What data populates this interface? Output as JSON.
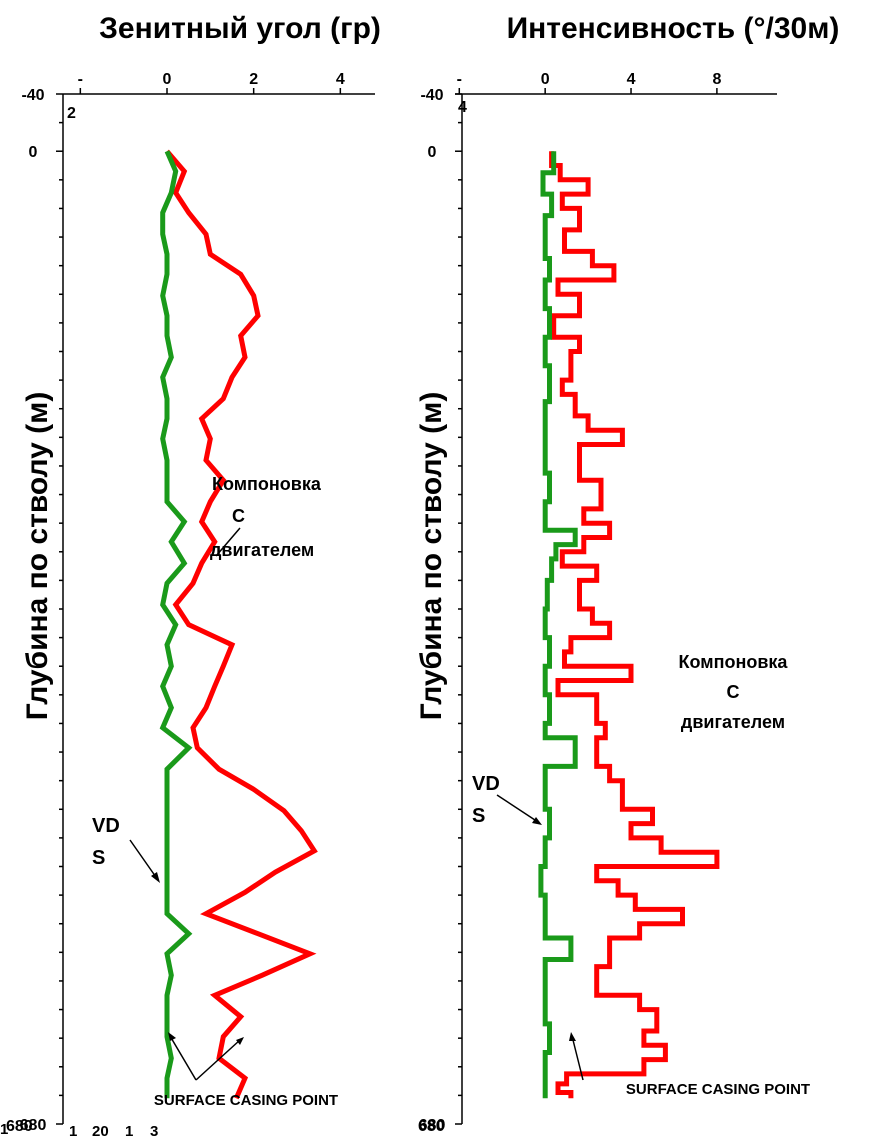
{
  "chart_data": [
    {
      "type": "line",
      "title": "Зенитный угол (гр)",
      "ylabel": "Глубина по стволу (м)",
      "x_tick_labels": [
        "-",
        "0",
        "2",
        "4"
      ],
      "x_tick_values": [
        -2,
        0,
        2,
        4
      ],
      "x_extra_label": "2",
      "y_tick_labels": [
        "-40",
        "0",
        "680"
      ],
      "y_tick_values": [
        -40,
        0,
        680
      ],
      "xlim": [
        -2.4,
        4.8
      ],
      "ylim": [
        -40,
        680
      ],
      "series": [
        {
          "color": "#ff0000",
          "points": [
            [
              0,
              0
            ],
            [
              0.4,
              14
            ],
            [
              0.2,
              29
            ],
            [
              0.5,
              43
            ],
            [
              0.9,
              58
            ],
            [
              1.0,
              72
            ],
            [
              1.7,
              86
            ],
            [
              2.0,
              101
            ],
            [
              2.1,
              115
            ],
            [
              1.7,
              129
            ],
            [
              1.8,
              144
            ],
            [
              1.5,
              158
            ],
            [
              1.3,
              173
            ],
            [
              0.8,
              187
            ],
            [
              1.0,
              201
            ],
            [
              0.9,
              216
            ],
            [
              1.3,
              230
            ],
            [
              1.0,
              245
            ],
            [
              0.8,
              259
            ],
            [
              1.1,
              273
            ],
            [
              0.8,
              288
            ],
            [
              0.6,
              302
            ],
            [
              0.2,
              317
            ],
            [
              0.5,
              331
            ],
            [
              1.5,
              345
            ],
            [
              1.3,
              360
            ],
            [
              1.1,
              374
            ],
            [
              0.9,
              389
            ],
            [
              0.6,
              403
            ],
            [
              0.7,
              417
            ],
            [
              1.2,
              432
            ],
            [
              2.0,
              446
            ],
            [
              2.7,
              461
            ],
            [
              3.1,
              475
            ],
            [
              3.4,
              489
            ],
            [
              2.5,
              504
            ],
            [
              1.8,
              518
            ],
            [
              0.9,
              533
            ],
            [
              2.1,
              547
            ],
            [
              3.3,
              561
            ],
            [
              2.2,
              576
            ],
            [
              1.1,
              590
            ],
            [
              1.7,
              605
            ],
            [
              1.3,
              619
            ],
            [
              1.2,
              634
            ],
            [
              1.8,
              648
            ],
            [
              1.6,
              662
            ]
          ]
        },
        {
          "color": "#1a9a1a",
          "points": [
            [
              0,
              0
            ],
            [
              0.2,
              14
            ],
            [
              0.1,
              29
            ],
            [
              -0.1,
              43
            ],
            [
              -0.1,
              58
            ],
            [
              0,
              72
            ],
            [
              0,
              86
            ],
            [
              -0.1,
              101
            ],
            [
              0,
              115
            ],
            [
              0,
              129
            ],
            [
              0.1,
              144
            ],
            [
              -0.1,
              158
            ],
            [
              0,
              173
            ],
            [
              0,
              187
            ],
            [
              -0.1,
              201
            ],
            [
              0,
              216
            ],
            [
              0,
              230
            ],
            [
              0,
              245
            ],
            [
              0.4,
              259
            ],
            [
              0.1,
              273
            ],
            [
              0.4,
              288
            ],
            [
              0,
              302
            ],
            [
              -0.1,
              317
            ],
            [
              0.2,
              331
            ],
            [
              0,
              345
            ],
            [
              0.1,
              360
            ],
            [
              -0.1,
              374
            ],
            [
              0.1,
              389
            ],
            [
              -0.1,
              403
            ],
            [
              0.5,
              417
            ],
            [
              0,
              432
            ],
            [
              0,
              446
            ],
            [
              0,
              461
            ],
            [
              0,
              475
            ],
            [
              0,
              489
            ],
            [
              0,
              504
            ],
            [
              0,
              518
            ],
            [
              0,
              533
            ],
            [
              0.5,
              547
            ],
            [
              0,
              561
            ],
            [
              0.1,
              576
            ],
            [
              0,
              590
            ],
            [
              0,
              605
            ],
            [
              0,
              619
            ],
            [
              0.1,
              634
            ],
            [
              0,
              648
            ],
            [
              0,
              662
            ]
          ]
        }
      ],
      "annotations": {
        "assembly": [
          "Компоновка",
          "С",
          "двигателем"
        ],
        "vds": [
          "VD",
          "S"
        ],
        "casing": "SURFACE CASING POINT",
        "footnote_tokens": [
          "1",
          "680",
          "1",
          "20",
          "1",
          "3"
        ]
      }
    },
    {
      "type": "line",
      "title": "Интенсивность (°/30м)",
      "ylabel": "Глубина по стволу (м)",
      "x_tick_labels": [
        "-",
        "0",
        "4",
        "8"
      ],
      "x_tick_values": [
        -4,
        0,
        4,
        8
      ],
      "x_extra_label": "4",
      "y_tick_labels": [
        "-40",
        "0",
        "680"
      ],
      "y_tick_values": [
        -40,
        0,
        680
      ],
      "xlim": [
        -4.2,
        10.8
      ],
      "ylim": [
        -40,
        680
      ],
      "series": [
        {
          "color": "#ff0000",
          "points": [
            [
              0.3,
              0
            ],
            [
              0.3,
              10
            ],
            [
              0.7,
              10
            ],
            [
              0.7,
              20
            ],
            [
              2.0,
              20
            ],
            [
              2.0,
              30
            ],
            [
              0.8,
              30
            ],
            [
              0.8,
              40
            ],
            [
              1.6,
              40
            ],
            [
              1.6,
              55
            ],
            [
              0.9,
              55
            ],
            [
              0.9,
              70
            ],
            [
              2.2,
              70
            ],
            [
              2.2,
              80
            ],
            [
              3.2,
              80
            ],
            [
              3.2,
              90
            ],
            [
              0.6,
              90
            ],
            [
              0.6,
              100
            ],
            [
              1.6,
              100
            ],
            [
              1.6,
              115
            ],
            [
              0.4,
              115
            ],
            [
              0.4,
              130
            ],
            [
              1.6,
              130
            ],
            [
              1.6,
              140
            ],
            [
              1.2,
              140
            ],
            [
              1.2,
              160
            ],
            [
              0.8,
              160
            ],
            [
              0.8,
              170
            ],
            [
              1.4,
              170
            ],
            [
              1.4,
              185
            ],
            [
              2.0,
              185
            ],
            [
              2.0,
              195
            ],
            [
              3.6,
              195
            ],
            [
              3.6,
              205
            ],
            [
              1.6,
              205
            ],
            [
              1.6,
              230
            ],
            [
              2.6,
              230
            ],
            [
              2.6,
              250
            ],
            [
              1.8,
              250
            ],
            [
              1.8,
              260
            ],
            [
              3.0,
              260
            ],
            [
              3.0,
              270
            ],
            [
              1.8,
              270
            ],
            [
              1.8,
              280
            ],
            [
              0.8,
              280
            ],
            [
              0.8,
              290
            ],
            [
              2.4,
              290
            ],
            [
              2.4,
              300
            ],
            [
              1.6,
              300
            ],
            [
              1.6,
              320
            ],
            [
              2.2,
              320
            ],
            [
              2.2,
              330
            ],
            [
              3.0,
              330
            ],
            [
              3.0,
              340
            ],
            [
              1.2,
              340
            ],
            [
              1.2,
              350
            ],
            [
              0.9,
              350
            ],
            [
              0.9,
              360
            ],
            [
              4.0,
              360
            ],
            [
              4.0,
              370
            ],
            [
              0.6,
              370
            ],
            [
              0.6,
              380
            ],
            [
              2.4,
              380
            ],
            [
              2.4,
              400
            ],
            [
              2.8,
              400
            ],
            [
              2.8,
              410
            ],
            [
              2.4,
              410
            ],
            [
              2.4,
              430
            ],
            [
              3.0,
              430
            ],
            [
              3.0,
              440
            ],
            [
              3.6,
              440
            ],
            [
              3.6,
              460
            ],
            [
              5.0,
              460
            ],
            [
              5.0,
              470
            ],
            [
              4.0,
              470
            ],
            [
              4.0,
              480
            ],
            [
              5.4,
              480
            ],
            [
              5.4,
              490
            ],
            [
              8.0,
              490
            ],
            [
              8.0,
              500
            ],
            [
              2.4,
              500
            ],
            [
              2.4,
              510
            ],
            [
              3.4,
              510
            ],
            [
              3.4,
              520
            ],
            [
              4.2,
              520
            ],
            [
              4.2,
              530
            ],
            [
              6.4,
              530
            ],
            [
              6.4,
              540
            ],
            [
              4.4,
              540
            ],
            [
              4.4,
              550
            ],
            [
              3.0,
              550
            ],
            [
              3.0,
              570
            ],
            [
              2.4,
              570
            ],
            [
              2.4,
              590
            ],
            [
              4.4,
              590
            ],
            [
              4.4,
              600
            ],
            [
              5.2,
              600
            ],
            [
              5.2,
              615
            ],
            [
              4.6,
              615
            ],
            [
              4.6,
              625
            ],
            [
              5.6,
              625
            ],
            [
              5.6,
              635
            ],
            [
              4.6,
              635
            ],
            [
              4.6,
              645
            ],
            [
              1.0,
              645
            ],
            [
              1.0,
              652
            ],
            [
              0.6,
              652
            ],
            [
              0.6,
              658
            ],
            [
              1.2,
              658
            ],
            [
              1.2,
              662
            ]
          ]
        },
        {
          "color": "#1a9a1a",
          "points": [
            [
              0.4,
              0
            ],
            [
              0.4,
              15
            ],
            [
              -0.1,
              15
            ],
            [
              -0.1,
              30
            ],
            [
              0.3,
              30
            ],
            [
              0.3,
              45
            ],
            [
              0,
              45
            ],
            [
              0,
              75
            ],
            [
              0.2,
              75
            ],
            [
              0.2,
              90
            ],
            [
              0,
              90
            ],
            [
              0,
              110
            ],
            [
              0.2,
              110
            ],
            [
              0.2,
              130
            ],
            [
              0,
              130
            ],
            [
              0,
              150
            ],
            [
              0.2,
              150
            ],
            [
              0.2,
              175
            ],
            [
              0,
              175
            ],
            [
              0,
              225
            ],
            [
              0.2,
              225
            ],
            [
              0.2,
              245
            ],
            [
              0,
              245
            ],
            [
              0,
              265
            ],
            [
              1.4,
              265
            ],
            [
              1.4,
              275
            ],
            [
              0.5,
              275
            ],
            [
              0.5,
              285
            ],
            [
              0.3,
              285
            ],
            [
              0.3,
              300
            ],
            [
              0.1,
              300
            ],
            [
              0.1,
              320
            ],
            [
              0,
              320
            ],
            [
              0,
              340
            ],
            [
              0.2,
              340
            ],
            [
              0.2,
              360
            ],
            [
              0,
              360
            ],
            [
              0,
              380
            ],
            [
              0.2,
              380
            ],
            [
              0.2,
              400
            ],
            [
              0,
              400
            ],
            [
              0,
              410
            ],
            [
              1.4,
              410
            ],
            [
              1.4,
              430
            ],
            [
              0,
              430
            ],
            [
              0,
              460
            ],
            [
              0.2,
              460
            ],
            [
              0.2,
              480
            ],
            [
              0,
              480
            ],
            [
              0,
              500
            ],
            [
              -0.2,
              500
            ],
            [
              -0.2,
              520
            ],
            [
              0,
              520
            ],
            [
              0,
              550
            ],
            [
              1.2,
              550
            ],
            [
              1.2,
              565
            ],
            [
              0,
              565
            ],
            [
              0,
              610
            ],
            [
              0.2,
              610
            ],
            [
              0.2,
              630
            ],
            [
              0,
              630
            ],
            [
              0,
              662
            ]
          ]
        }
      ],
      "annotations": {
        "assembly": [
          "Компоновка",
          "С",
          "двигателем"
        ],
        "vds": [
          "VD",
          "S"
        ],
        "casing": "SURFACE CASING POINT",
        "footnote_tokens": [
          "680"
        ]
      }
    }
  ]
}
